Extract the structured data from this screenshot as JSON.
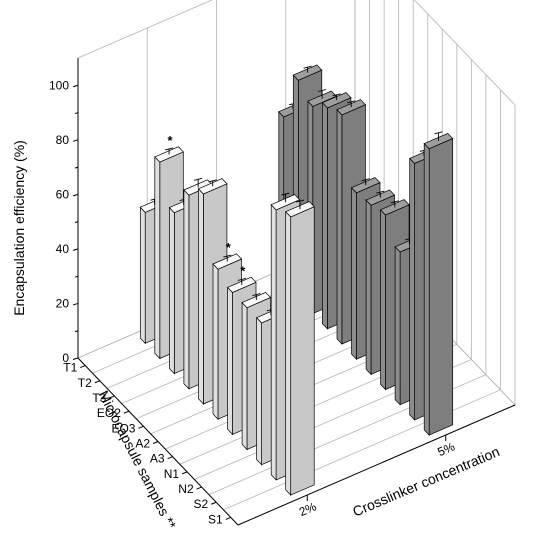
{
  "chart_data": {
    "type": "bar",
    "title": "",
    "zlabel": "Encapsulation efficiency (%)",
    "ylabel": "Microcapsule samples **",
    "xlabel": "Crosslinker concentration",
    "zlim": [
      0,
      110
    ],
    "z_ticks": [
      "0",
      "20",
      "40",
      "60",
      "80",
      "100"
    ],
    "samples": [
      "T1",
      "T2",
      "T3",
      "EO2",
      "EO3",
      "A2",
      "A3",
      "N1",
      "N2",
      "S2",
      "S1"
    ],
    "concentrations": [
      "2%",
      "5%"
    ],
    "grid": true,
    "series": [
      {
        "name": "2%",
        "color": "#c8c8c8",
        "values": [
          48,
          72,
          59,
          71,
          77,
          55,
          52,
          52,
          52,
          99,
          102
        ],
        "errors": [
          2,
          2,
          2,
          3,
          2,
          2,
          2,
          2,
          2,
          3,
          3
        ],
        "significant": [
          false,
          true,
          false,
          false,
          false,
          true,
          true,
          false,
          false,
          false,
          false
        ]
      },
      {
        "name": "5%",
        "color": "#7e7e7e",
        "values": [
          61,
          80,
          76,
          81,
          84,
          61,
          62,
          64,
          56,
          94,
          105
        ],
        "errors": [
          2,
          2,
          3,
          2,
          2,
          2,
          2,
          2,
          2,
          2,
          3
        ],
        "significant": [
          false,
          false,
          false,
          false,
          false,
          false,
          false,
          false,
          false,
          false,
          false
        ]
      }
    ],
    "annotations": [
      "*"
    ]
  }
}
